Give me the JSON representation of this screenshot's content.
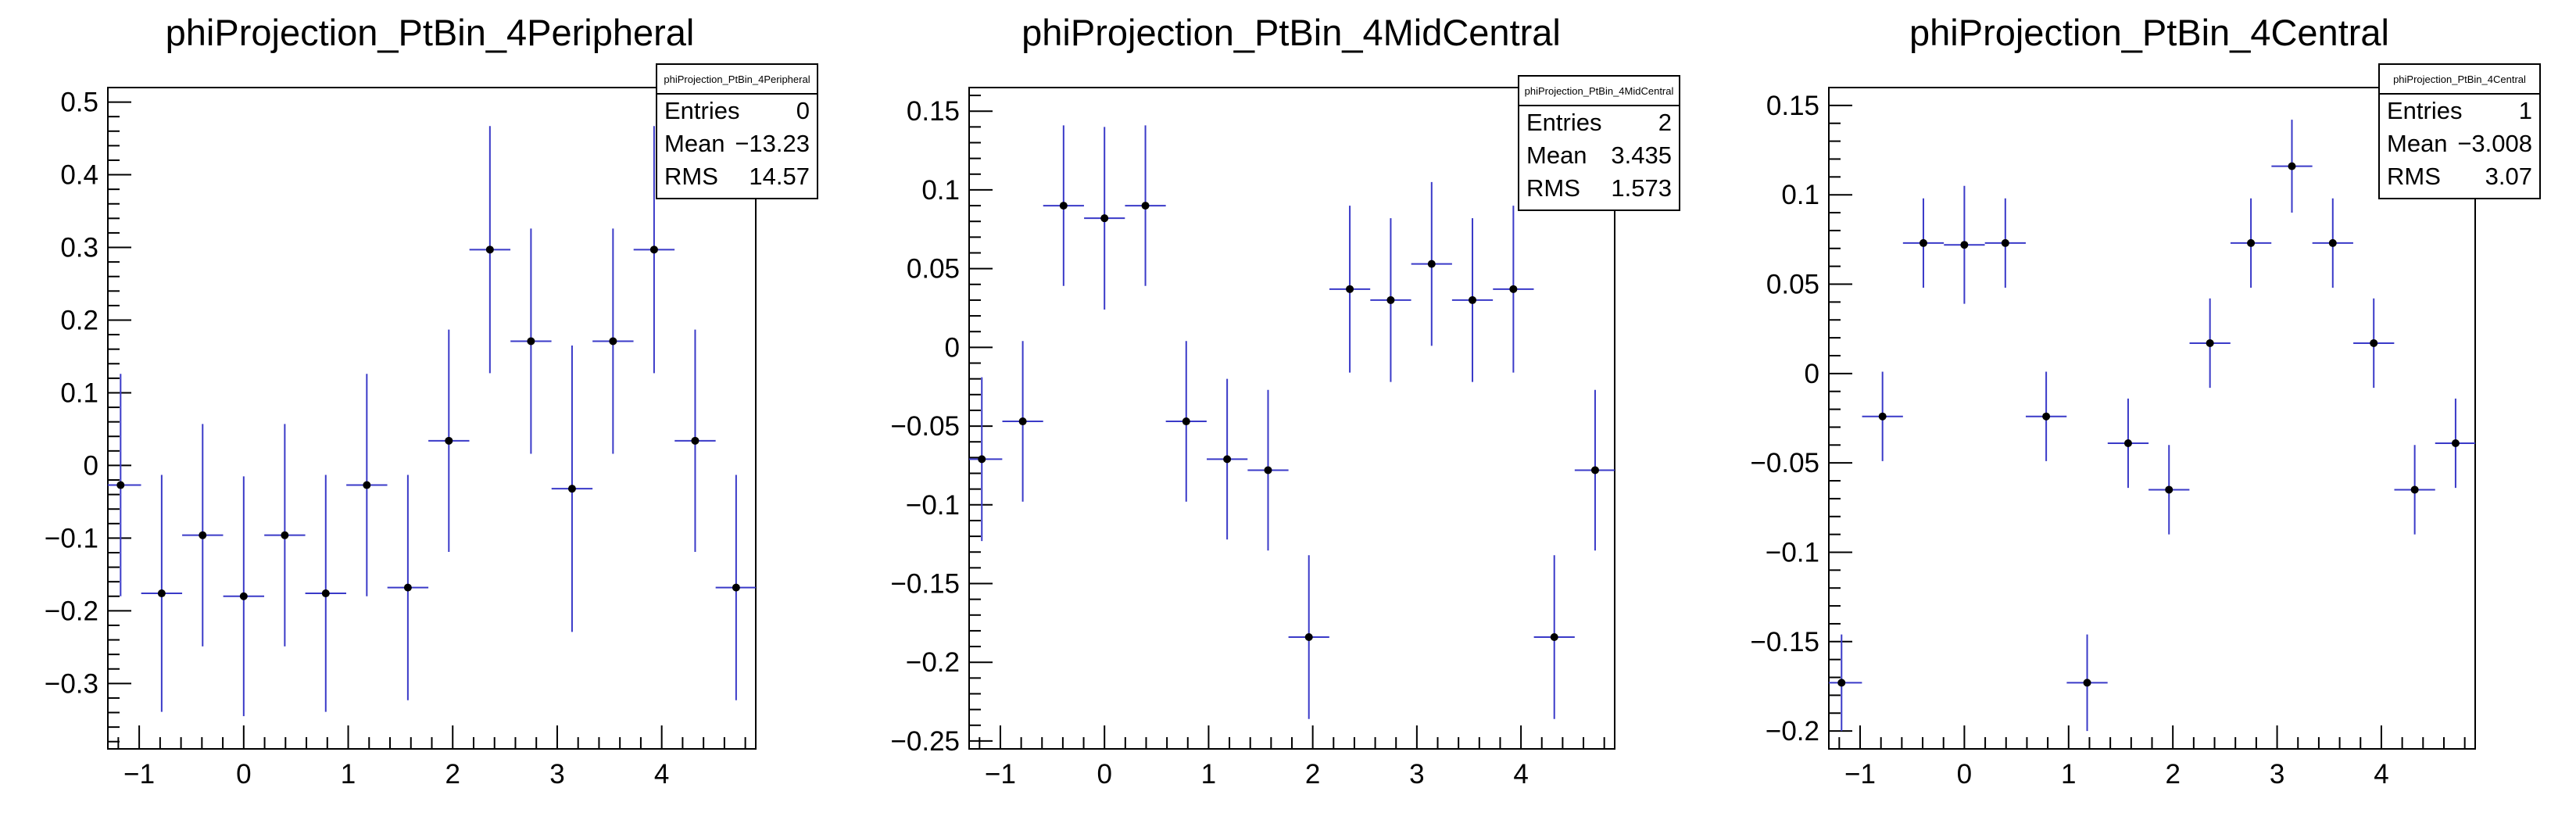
{
  "chart_data": [
    {
      "type": "scatter",
      "title": "phiProjection_PtBin_4Peripheral",
      "xlabel": "",
      "ylabel": "",
      "xlim": [
        -1.3,
        4.9
      ],
      "ylim": [
        -0.39,
        0.52
      ],
      "xticks": [
        -1,
        0,
        1,
        2,
        3,
        4
      ],
      "xtick_labels": [
        "−1",
        "0",
        "1",
        "2",
        "3",
        "4"
      ],
      "yticks": [
        -0.3,
        -0.2,
        -0.1,
        0,
        0.1,
        0.2,
        0.3,
        0.4,
        0.5
      ],
      "ytick_labels": [
        "−0.3",
        "−0.2",
        "−0.1",
        "0",
        "0.1",
        "0.2",
        "0.3",
        "0.4",
        "0.5"
      ],
      "bin_half_width": 0.196,
      "x": [
        -1.178,
        -0.785,
        -0.393,
        0.0,
        0.393,
        0.785,
        1.178,
        1.571,
        1.963,
        2.356,
        2.749,
        3.142,
        3.534,
        3.927,
        4.32,
        4.712
      ],
      "y": [
        -0.027,
        -0.176,
        -0.096,
        -0.18,
        -0.096,
        -0.176,
        -0.027,
        -0.168,
        0.034,
        0.297,
        0.171,
        -0.032,
        0.171,
        0.297,
        0.034,
        -0.168
      ],
      "yerr": [
        0.153,
        0.163,
        0.153,
        0.165,
        0.153,
        0.163,
        0.153,
        0.155,
        0.153,
        0.17,
        0.155,
        0.197,
        0.155,
        0.17,
        0.153,
        0.155
      ],
      "stats": {
        "header": "phiProjection_PtBin_4Peripheral",
        "rows": [
          [
            "Entries",
            "0"
          ],
          [
            "Mean",
            "−13.23"
          ],
          [
            "RMS",
            "14.57"
          ]
        ]
      },
      "colors": {
        "marker": "#000000",
        "error_bar": "#3a3ac8",
        "frame": "#000000"
      }
    },
    {
      "type": "scatter",
      "title": "phiProjection_PtBin_4MidCentral",
      "xlabel": "",
      "ylabel": "",
      "xlim": [
        -1.3,
        4.9
      ],
      "ylim": [
        -0.255,
        0.165
      ],
      "xticks": [
        -1,
        0,
        1,
        2,
        3,
        4
      ],
      "xtick_labels": [
        "−1",
        "0",
        "1",
        "2",
        "3",
        "4"
      ],
      "yticks": [
        -0.25,
        -0.2,
        -0.15,
        -0.1,
        -0.05,
        0,
        0.05,
        0.1,
        0.15
      ],
      "ytick_labels": [
        "−0.25",
        "−0.2",
        "−0.15",
        "−0.1",
        "−0.05",
        "0",
        "0.05",
        "0.1",
        "0.15"
      ],
      "bin_half_width": 0.196,
      "x": [
        -1.178,
        -0.785,
        -0.393,
        0.0,
        0.393,
        0.785,
        1.178,
        1.571,
        1.963,
        2.356,
        2.749,
        3.142,
        3.534,
        3.927,
        4.32,
        4.712
      ],
      "y": [
        -0.071,
        -0.047,
        0.09,
        0.082,
        0.09,
        -0.047,
        -0.071,
        -0.078,
        -0.184,
        0.037,
        0.03,
        0.053,
        0.03,
        0.037,
        -0.184,
        -0.078
      ],
      "yerr": [
        0.052,
        0.051,
        0.051,
        0.058,
        0.051,
        0.051,
        0.051,
        0.051,
        0.052,
        0.053,
        0.052,
        0.052,
        0.052,
        0.053,
        0.052,
        0.051
      ],
      "stats": {
        "header": "phiProjection_PtBin_4MidCentral",
        "rows": [
          [
            "Entries",
            "2"
          ],
          [
            "Mean",
            "3.435"
          ],
          [
            "RMS",
            "1.573"
          ]
        ]
      },
      "colors": {
        "marker": "#000000",
        "error_bar": "#3a3ac8",
        "frame": "#000000"
      }
    },
    {
      "type": "scatter",
      "title": "phiProjection_PtBin_4Central",
      "xlabel": "",
      "ylabel": "",
      "xlim": [
        -1.3,
        4.9
      ],
      "ylim": [
        -0.21,
        0.16
      ],
      "xticks": [
        -1,
        0,
        1,
        2,
        3,
        4
      ],
      "xtick_labels": [
        "−1",
        "0",
        "1",
        "2",
        "3",
        "4"
      ],
      "yticks": [
        -0.2,
        -0.15,
        -0.1,
        -0.05,
        0,
        0.05,
        0.1,
        0.15
      ],
      "ytick_labels": [
        "−0.2",
        "−0.15",
        "−0.1",
        "−0.05",
        "0",
        "0.05",
        "0.1",
        "0.15"
      ],
      "bin_half_width": 0.196,
      "x": [
        -1.178,
        -0.785,
        -0.393,
        0.0,
        0.393,
        0.785,
        1.178,
        1.571,
        1.963,
        2.356,
        2.749,
        3.142,
        3.534,
        3.927,
        4.32,
        4.712
      ],
      "y": [
        -0.173,
        -0.024,
        0.073,
        0.072,
        0.073,
        -0.024,
        -0.173,
        -0.039,
        -0.065,
        0.017,
        0.073,
        0.116,
        0.073,
        0.017,
        -0.065,
        -0.039
      ],
      "yerr": [
        0.027,
        0.025,
        0.025,
        0.033,
        0.025,
        0.025,
        0.027,
        0.025,
        0.025,
        0.025,
        0.025,
        0.026,
        0.025,
        0.025,
        0.025,
        0.025
      ],
      "stats": {
        "header": "phiProjection_PtBin_4Central",
        "rows": [
          [
            "Entries",
            "1"
          ],
          [
            "Mean",
            "−3.008"
          ],
          [
            "RMS",
            "3.07"
          ]
        ]
      },
      "colors": {
        "marker": "#000000",
        "error_bar": "#3a3ac8",
        "frame": "#000000"
      }
    }
  ]
}
